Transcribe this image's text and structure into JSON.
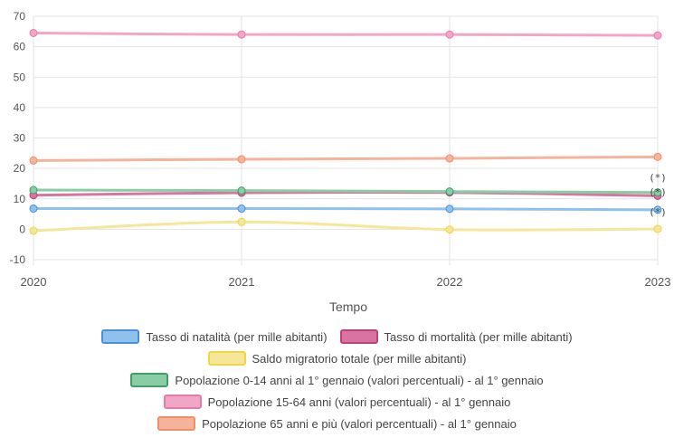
{
  "chart_data": {
    "type": "line",
    "xlabel": "Tempo",
    "ylabel": "",
    "x": [
      "2020",
      "2021",
      "2022",
      "2023"
    ],
    "ylim": [
      -10,
      70
    ],
    "yticks": [
      "-10",
      "0",
      "10",
      "20",
      "30",
      "40",
      "50",
      "60",
      "70"
    ],
    "grid": true,
    "legend_position": "bottom",
    "annotations": [
      {
        "x": "2023",
        "text": "(*)"
      },
      {
        "x": "2023",
        "text": "(*)"
      },
      {
        "x": "2023",
        "text": "(*)"
      }
    ],
    "series": [
      {
        "name": "Tasso di natalità (per mille abitanti)",
        "color": "#4a90d9",
        "fill": "#8fc1ee",
        "values": [
          6.8,
          6.8,
          6.7,
          6.4
        ]
      },
      {
        "name": "Tasso di mortalità (per mille abitanti)",
        "color": "#c2407a",
        "fill": "#d8749f",
        "values": [
          11.2,
          12.0,
          12.1,
          11.0
        ]
      },
      {
        "name": "Saldo migratorio totale (per mille abitanti)",
        "color": "#f0d640",
        "fill": "#f6e69a",
        "values": [
          -0.5,
          2.4,
          -0.1,
          0.1
        ]
      },
      {
        "name": "Popolazione 0-14 anni al 1° gennaio (valori percentuali) - al 1° gennaio",
        "color": "#3f9e6a",
        "fill": "#89cda4",
        "values": [
          12.9,
          12.7,
          12.4,
          12.1
        ]
      },
      {
        "name": "Popolazione 15-64 anni (valori percentuali) - al 1° gennaio",
        "color": "#e47aa8",
        "fill": "#f2a6c6",
        "values": [
          64.5,
          64.0,
          64.0,
          63.7
        ]
      },
      {
        "name": "Popolazione 65 anni e più (valori percentuali) - al 1° gennaio",
        "color": "#f08e6a",
        "fill": "#f5b399",
        "values": [
          22.6,
          23.0,
          23.3,
          23.8
        ]
      }
    ]
  }
}
